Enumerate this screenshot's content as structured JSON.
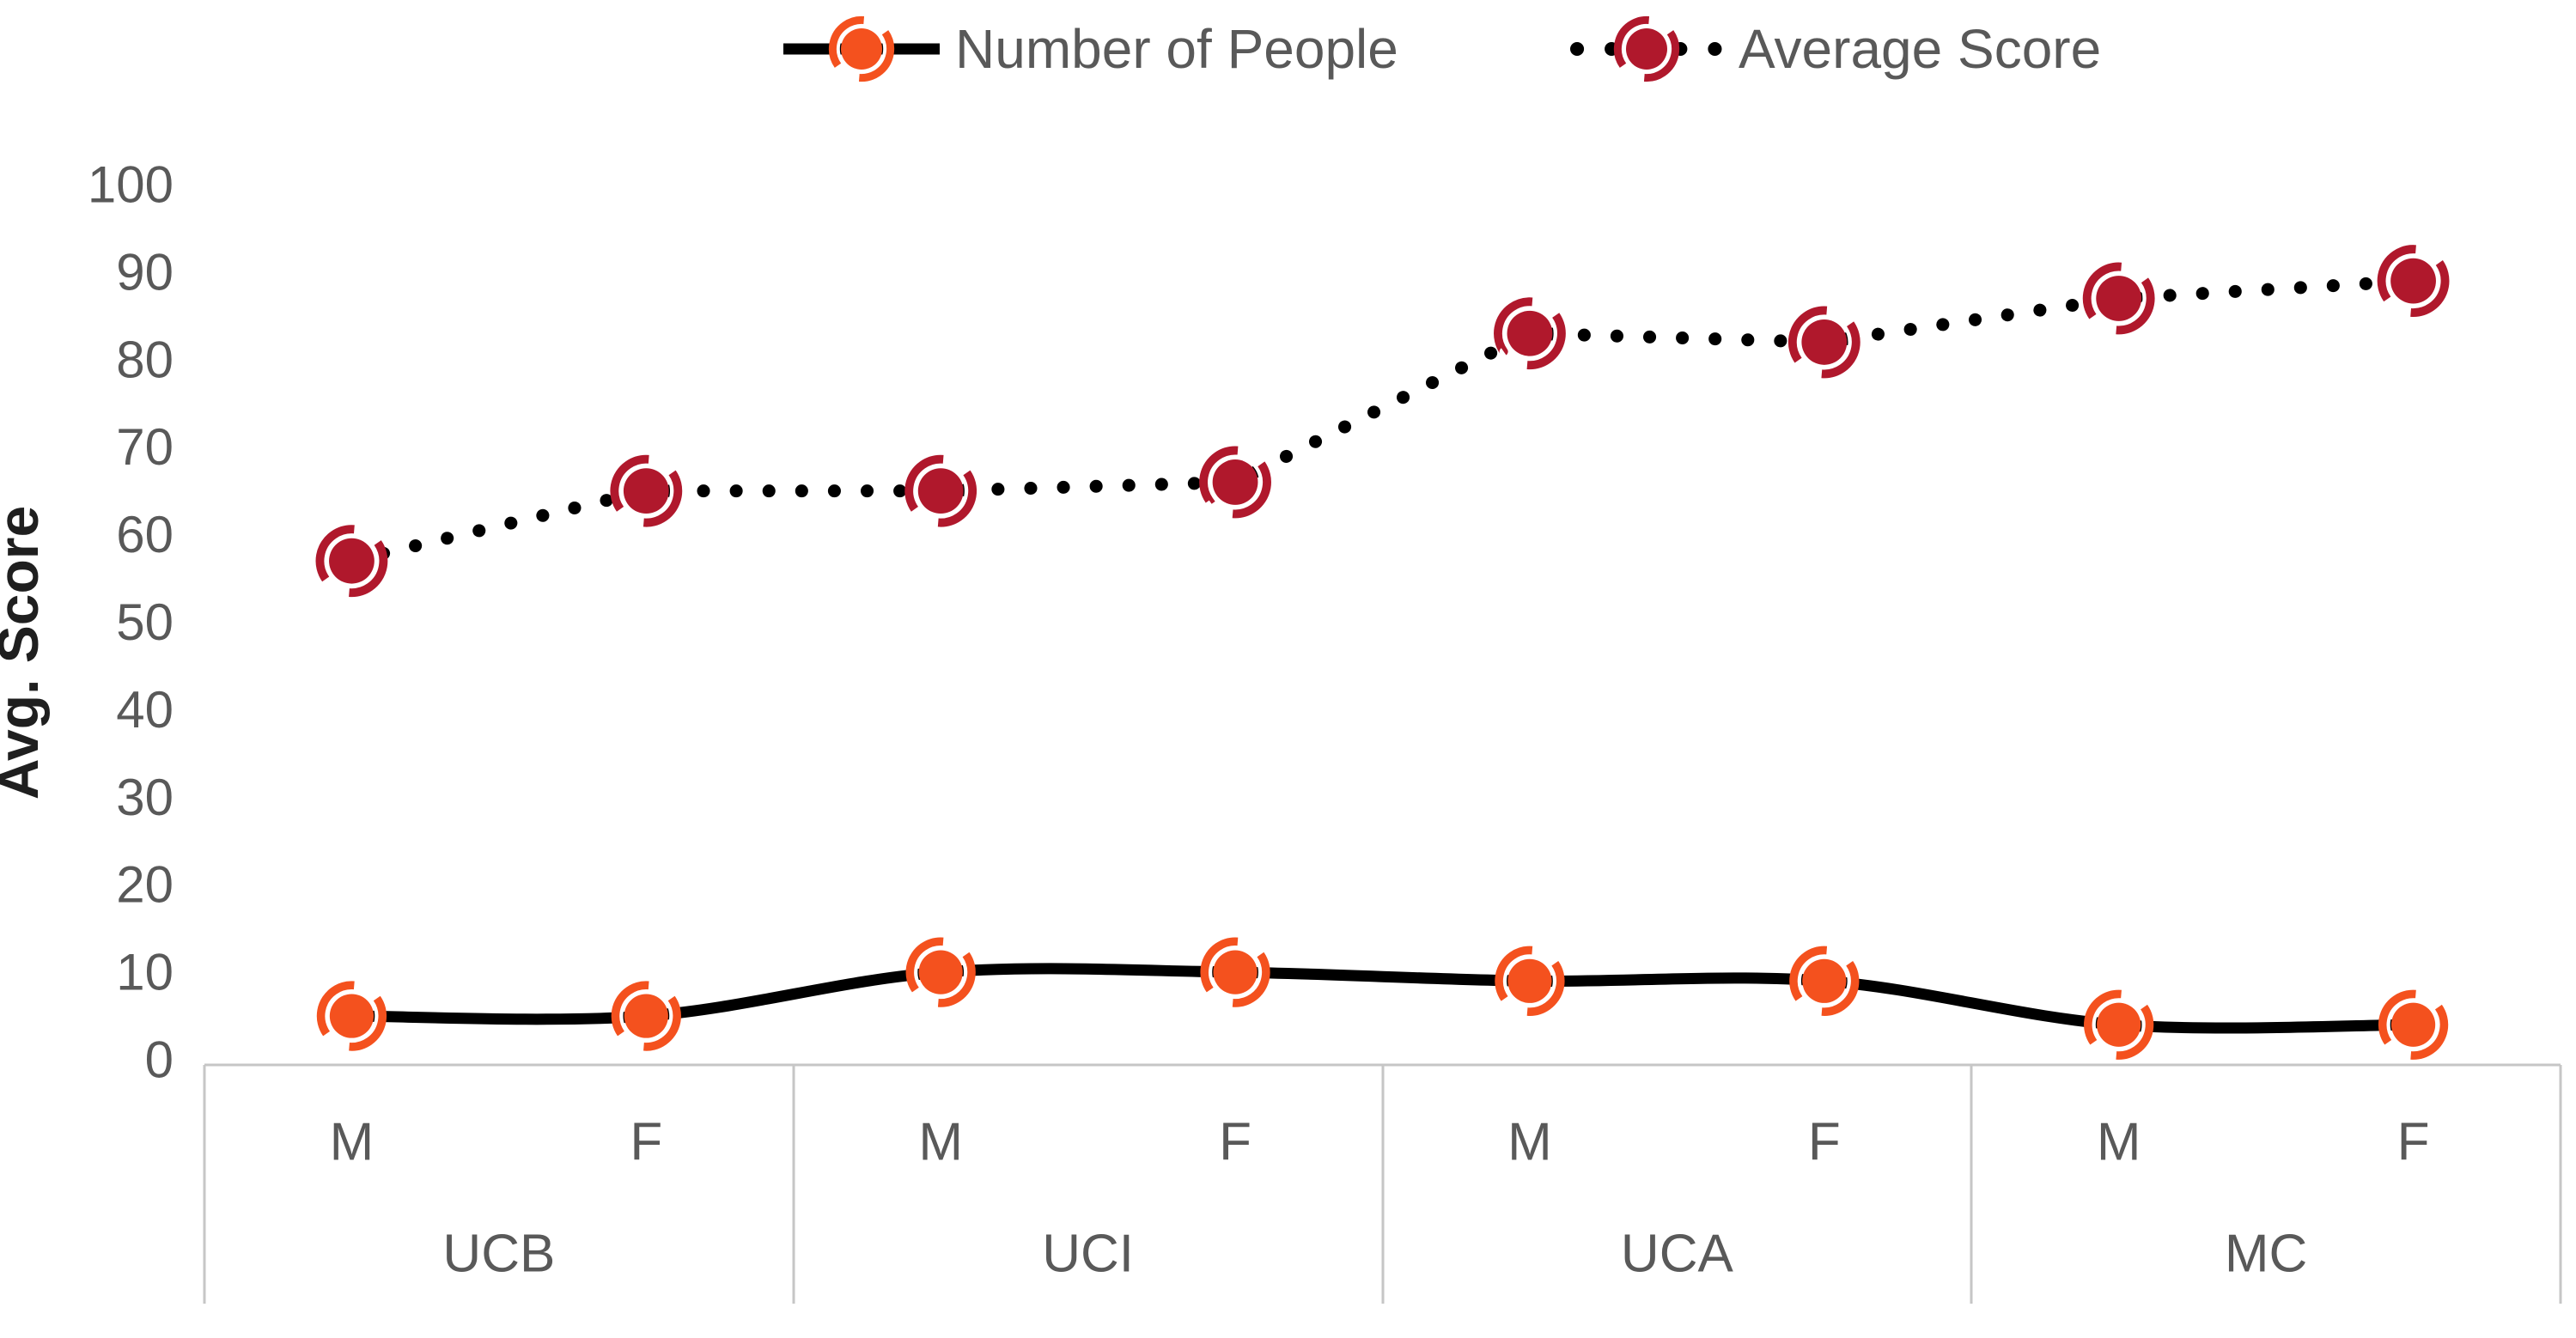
{
  "page": {
    "background": "#ffffff"
  },
  "chart_data": {
    "type": "line",
    "title": "",
    "xlabel": "",
    "ylabel": "Avg. Score",
    "ylim": [
      0,
      100
    ],
    "ytick_interval": 10,
    "yticks": [
      "0",
      "10",
      "20",
      "30",
      "40",
      "50",
      "60",
      "70",
      "80",
      "90",
      "100"
    ],
    "grid": false,
    "legend_position": "top",
    "groups": [
      "UCB",
      "UCI",
      "UCA",
      "MC"
    ],
    "subcategories": [
      "M",
      "F"
    ],
    "category_row": [
      "M",
      "F",
      "M",
      "F",
      "M",
      "F",
      "M",
      "F"
    ],
    "series": [
      {
        "name": "Number of People",
        "type": "line",
        "line_style": "solid",
        "smooth": true,
        "line_color": "#000000",
        "marker_color": "#F4511E",
        "values": [
          5,
          5,
          10,
          10,
          9,
          9,
          4,
          4
        ]
      },
      {
        "name": "Average Score",
        "type": "line",
        "line_style": "dotted",
        "smooth": false,
        "line_color": "#000000",
        "marker_color": "#B0182C",
        "values": [
          57,
          65,
          65,
          66,
          83,
          82,
          87,
          89
        ]
      }
    ]
  },
  "colors": {
    "axis_text": "#595959",
    "band_border": "#c6c6c6",
    "ylabel_text": "#1f1f1f",
    "background": "#ffffff"
  }
}
